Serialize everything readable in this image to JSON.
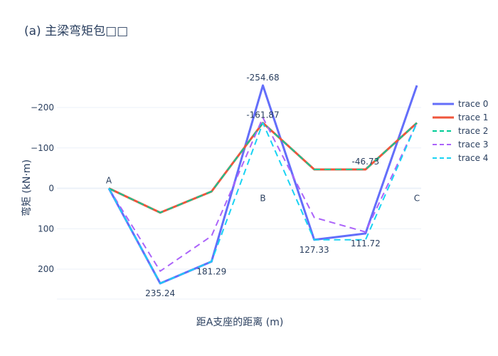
{
  "chart_data": {
    "type": "line",
    "title": "(a) 主梁弯矩包□□",
    "xlabel": "距A支座的距离 (m)",
    "ylabel": "弯矩 (kN·m)",
    "y_reversed": true,
    "ylim": [
      270,
      -300
    ],
    "yticks": [
      -200,
      -100,
      0,
      100,
      200
    ],
    "ytick_labels": [
      "−200",
      "−100",
      "0",
      "100",
      "200"
    ],
    "x": [
      0,
      1,
      2,
      3,
      4,
      5,
      6
    ],
    "grid": true,
    "legend_position": "right",
    "series": [
      {
        "name": "trace 0",
        "color": "#636efa",
        "dash": "solid",
        "width": 3,
        "values": [
          0,
          235.24,
          181.29,
          -254.68,
          127.33,
          111.72,
          -254.68
        ]
      },
      {
        "name": "trace 1",
        "color": "#ef553b",
        "dash": "solid",
        "width": 3,
        "values": [
          0,
          60,
          8,
          -161.87,
          -46.73,
          -46.73,
          -161.87
        ]
      },
      {
        "name": "trace 2",
        "color": "#00cc96",
        "dash": "dash",
        "width": 2,
        "values": [
          0,
          60,
          8,
          -161.87,
          -46.73,
          -46.73,
          -161.87
        ]
      },
      {
        "name": "trace 3",
        "color": "#ab63fa",
        "dash": "dash",
        "width": 2,
        "values": [
          0,
          205,
          118,
          -175,
          72,
          108,
          -161.87
        ]
      },
      {
        "name": "trace 4",
        "color": "#19d3f3",
        "dash": "dash",
        "width": 2,
        "values": [
          0,
          235.24,
          181.29,
          -161.87,
          127.33,
          127.33,
          -161.87
        ]
      }
    ],
    "annotations": [
      {
        "text": "A",
        "x": 0,
        "y": 0,
        "pos": "above"
      },
      {
        "text": "235.24",
        "x": 1,
        "y": 235.24,
        "pos": "below"
      },
      {
        "text": "181.29",
        "x": 2,
        "y": 181.29,
        "pos": "below"
      },
      {
        "text": "-254.68",
        "x": 3,
        "y": -254.68,
        "pos": "above"
      },
      {
        "text": "-161.87",
        "x": 3,
        "y": -161.87,
        "pos": "above"
      },
      {
        "text": "B",
        "x": 3,
        "y": 0,
        "pos": "below"
      },
      {
        "text": "127.33",
        "x": 4,
        "y": 127.33,
        "pos": "below"
      },
      {
        "text": "-46.73",
        "x": 5,
        "y": -46.73,
        "pos": "above"
      },
      {
        "text": "111.72",
        "x": 5,
        "y": 111.72,
        "pos": "below"
      },
      {
        "text": "C",
        "x": 6,
        "y": 0,
        "pos": "below"
      }
    ]
  }
}
